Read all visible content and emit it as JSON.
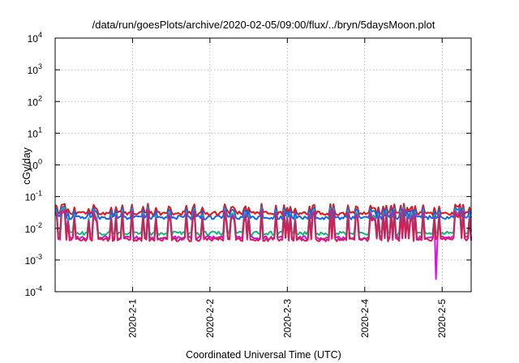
{
  "chart_data": {
    "type": "line",
    "title": "/data/run/goesPlots/archive/2020-02-05/09:00/flux/../bryn/5daysMoon.plot",
    "xlabel": "Coordinated Universal Time (UTC)",
    "ylabel": "cGy/day",
    "y_scale": "log",
    "ylim": [
      0.0001,
      10000
    ],
    "y_ticks": [
      {
        "base": "10",
        "exp": "-4",
        "value": 0.0001
      },
      {
        "base": "10",
        "exp": "-3",
        "value": 0.001
      },
      {
        "base": "10",
        "exp": "-2",
        "value": 0.01
      },
      {
        "base": "10",
        "exp": "-1",
        "value": 0.1
      },
      {
        "base": "10",
        "exp": "0",
        "value": 1
      },
      {
        "base": "10",
        "exp": "1",
        "value": 10
      },
      {
        "base": "10",
        "exp": "2",
        "value": 100
      },
      {
        "base": "10",
        "exp": "3",
        "value": 1000
      },
      {
        "base": "10",
        "exp": "4",
        "value": 10000
      }
    ],
    "xlim": [
      "2020-01-31 00:00",
      "2020-02-05 09:00"
    ],
    "x_ticks": [
      "2020-2-1",
      "2020-2-2",
      "2020-2-3",
      "2020-2-4",
      "2020-2-5"
    ],
    "grid": true,
    "legend": "none",
    "series": [
      {
        "color": "#ee1111",
        "baseline": 0.03,
        "spike_max": 0.06
      },
      {
        "color": "#1166ee",
        "baseline": 0.022,
        "spike_max": 0.05
      },
      {
        "color": "#11bb77",
        "baseline": 0.007,
        "spike_max": 0.045
      },
      {
        "color": "#dd11dd",
        "baseline": 0.005,
        "spike_max": 0.04,
        "min": 0.00025,
        "min_at": "2020-02-04 22:00"
      },
      {
        "color": "#cc2255",
        "baseline": 0.0045,
        "spike_max": 0.035
      }
    ]
  }
}
